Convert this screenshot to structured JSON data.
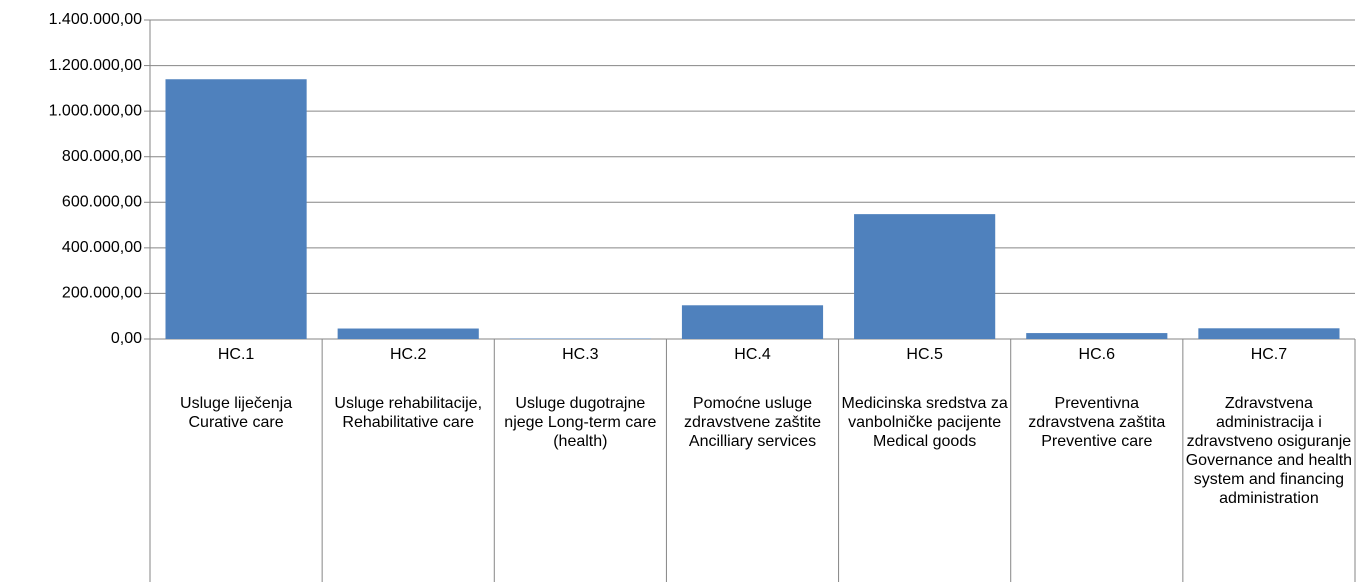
{
  "chart_data": {
    "type": "bar",
    "categories": [
      "HC.1",
      "HC.2",
      "HC.3",
      "HC.4",
      "HC.5",
      "HC.6",
      "HC.7"
    ],
    "descriptions": [
      "Usluge liječenja Curative care",
      "Usluge rehabilitacije, Rehabilitative care",
      "Usluge dugotrajne njege Long-term care (health)",
      "Pomoćne usluge zdravstvene zaštite Ancilliary services",
      "Medicinska sredstva za vanbolničke pacijente Medical goods",
      "Preventivna zdravstvena zaštita Preventive care",
      "Zdravstvena administracija i zdravstveno osiguranje Governance and health system and financing administration"
    ],
    "values": [
      1140000,
      46000,
      2000,
      148000,
      548000,
      26000,
      47000
    ],
    "color": "#4f81bd",
    "ylim": [
      0,
      1400000
    ],
    "yticks": [
      {
        "value": 0,
        "label": "0,00"
      },
      {
        "value": 200000,
        "label": "200.000,00"
      },
      {
        "value": 400000,
        "label": "400.000,00"
      },
      {
        "value": 600000,
        "label": "600.000,00"
      },
      {
        "value": 800000,
        "label": "800.000,00"
      },
      {
        "value": 1000000,
        "label": "1.000.000,00"
      },
      {
        "value": 1200000,
        "label": "1.200.000,00"
      },
      {
        "value": 1400000,
        "label": "1.400.000,00"
      }
    ],
    "grid": true
  }
}
